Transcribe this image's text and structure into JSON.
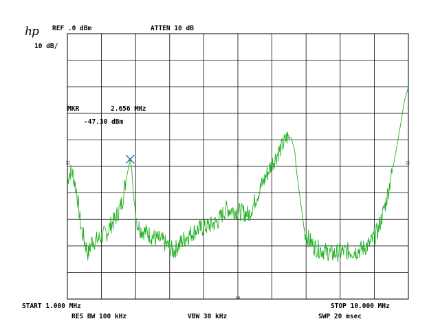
{
  "header": {
    "logo": "hp",
    "ref_level": "REF .0 dBm",
    "attenuation": "ATTEN 10 dB",
    "scale": "10 dB/"
  },
  "marker": {
    "label": "MKR",
    "frequency": "2.656 MHz",
    "amplitude": "-47.30 dBm"
  },
  "footer": {
    "start": "START 1.000 MHz",
    "stop": "STOP 10.000 MHz",
    "rbw": "RES BW 100 kHz",
    "vbw": "VBW 30 kHz",
    "sweep": "SWP 20 msec"
  },
  "colors": {
    "trace": "#22b022",
    "marker": "#1a4ea0",
    "grid": "#000000"
  },
  "chart_data": {
    "type": "line",
    "xlim": [
      1.0,
      10.0
    ],
    "ylim": [
      -100,
      0
    ],
    "x_divisions": 10,
    "y_divisions": 10,
    "grid": true,
    "marker_point": {
      "x": 2.656,
      "y": -47.3
    },
    "series": [
      {
        "x": [
          1.0,
          1.08,
          1.15,
          1.25,
          1.35,
          1.45,
          1.55,
          1.65,
          1.75,
          1.85,
          1.95,
          2.05,
          2.15,
          2.25,
          2.35,
          2.45,
          2.55,
          2.62,
          2.656,
          2.7,
          2.75,
          2.85,
          2.95,
          3.1,
          3.3,
          3.5,
          3.8,
          4.1,
          4.4,
          4.6,
          4.8,
          4.95,
          5.2,
          5.5,
          5.8,
          6.1,
          6.4,
          6.6,
          6.8,
          6.9,
          7.0,
          7.05,
          7.15,
          7.2,
          7.25,
          7.3,
          7.4,
          7.5,
          7.6,
          7.8,
          8.0,
          8.3,
          8.6,
          8.8,
          9.0,
          9.2,
          9.4,
          9.6,
          9.75,
          9.9,
          10.0
        ],
        "y": [
          -55,
          -52,
          -53,
          -60,
          -72,
          -78,
          -83,
          -78,
          -78,
          -77,
          -76,
          -75,
          -72,
          -70,
          -67,
          -63,
          -55,
          -50,
          -47.3,
          -51,
          -62,
          -72,
          -74,
          -75,
          -77,
          -78,
          -82,
          -77,
          -74,
          -73,
          -72,
          -71,
          -66,
          -67,
          -68,
          -58,
          -49,
          -44,
          -39,
          -39,
          -44,
          -52,
          -63,
          -68,
          -74,
          -76,
          -78,
          -80,
          -81,
          -82,
          -83,
          -82,
          -82,
          -81,
          -79,
          -74,
          -64,
          -50,
          -38,
          -25,
          -20
        ]
      }
    ]
  }
}
